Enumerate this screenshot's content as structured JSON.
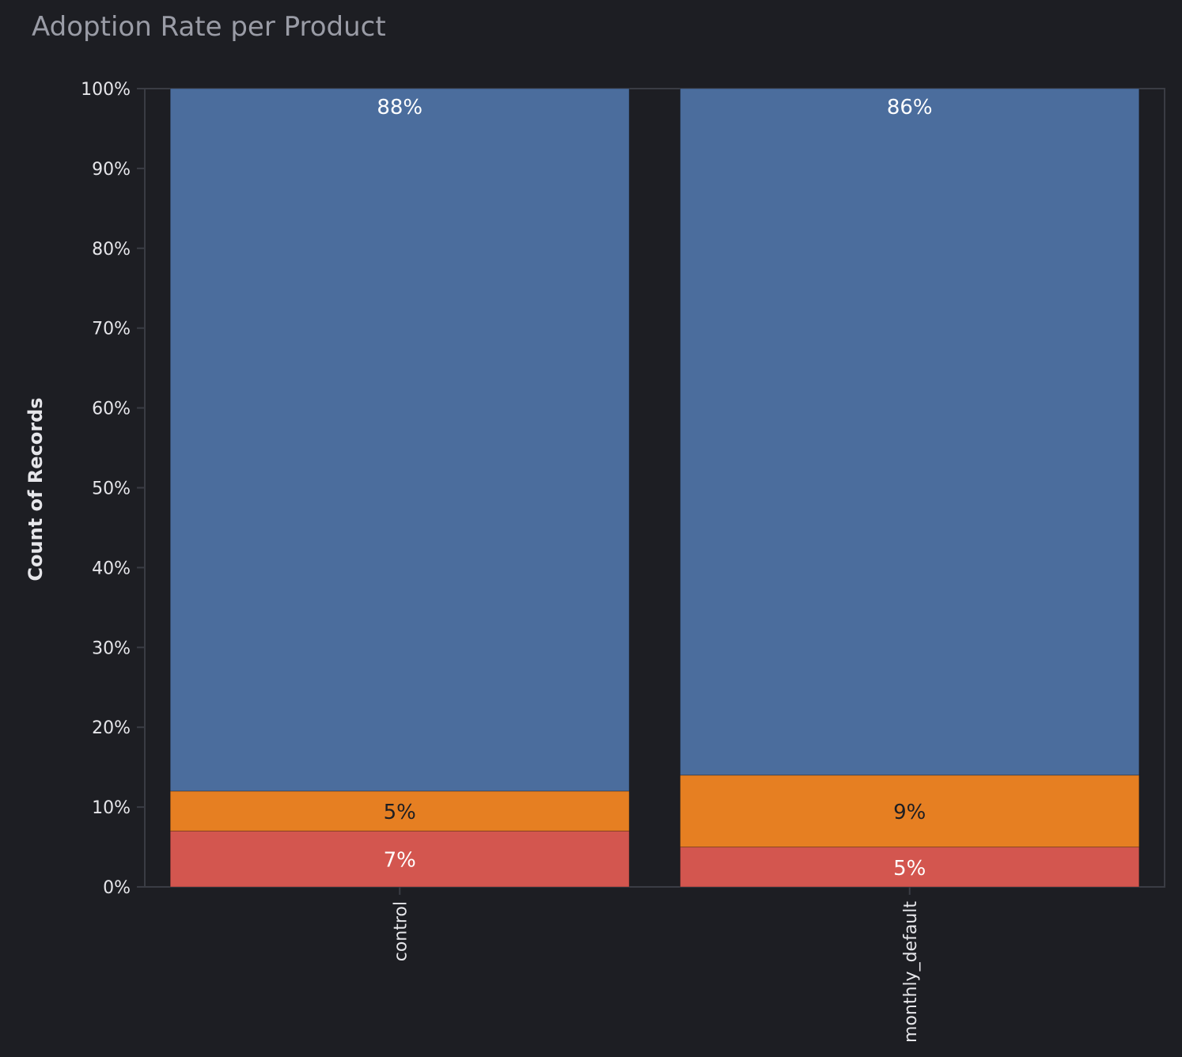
{
  "title": "Adoption Rate per Product",
  "chart_data": {
    "type": "bar",
    "stacked": true,
    "title": "Adoption Rate per Product",
    "xlabel": "",
    "ylabel": "Count of Records",
    "ylim": [
      0,
      100
    ],
    "yticks": [
      "0%",
      "10%",
      "20%",
      "30%",
      "40%",
      "50%",
      "60%",
      "70%",
      "80%",
      "90%",
      "100%"
    ],
    "categories": [
      "control",
      "monthly_default"
    ],
    "grid": false,
    "series": [
      {
        "color": "#d3564f",
        "label_color": "#ffffff",
        "values": [
          7,
          5
        ],
        "labels": [
          "7%",
          "5%"
        ]
      },
      {
        "color": "#e67f22",
        "label_color": "#1d1e23",
        "values": [
          5,
          9
        ],
        "labels": [
          "5%",
          "9%"
        ]
      },
      {
        "color": "#4b6d9d",
        "label_color": "#ffffff",
        "values": [
          88,
          86
        ],
        "labels": [
          "88%",
          "86%"
        ]
      }
    ],
    "colors": {
      "background": "#1d1e23",
      "axis": "#3a3c44"
    }
  }
}
